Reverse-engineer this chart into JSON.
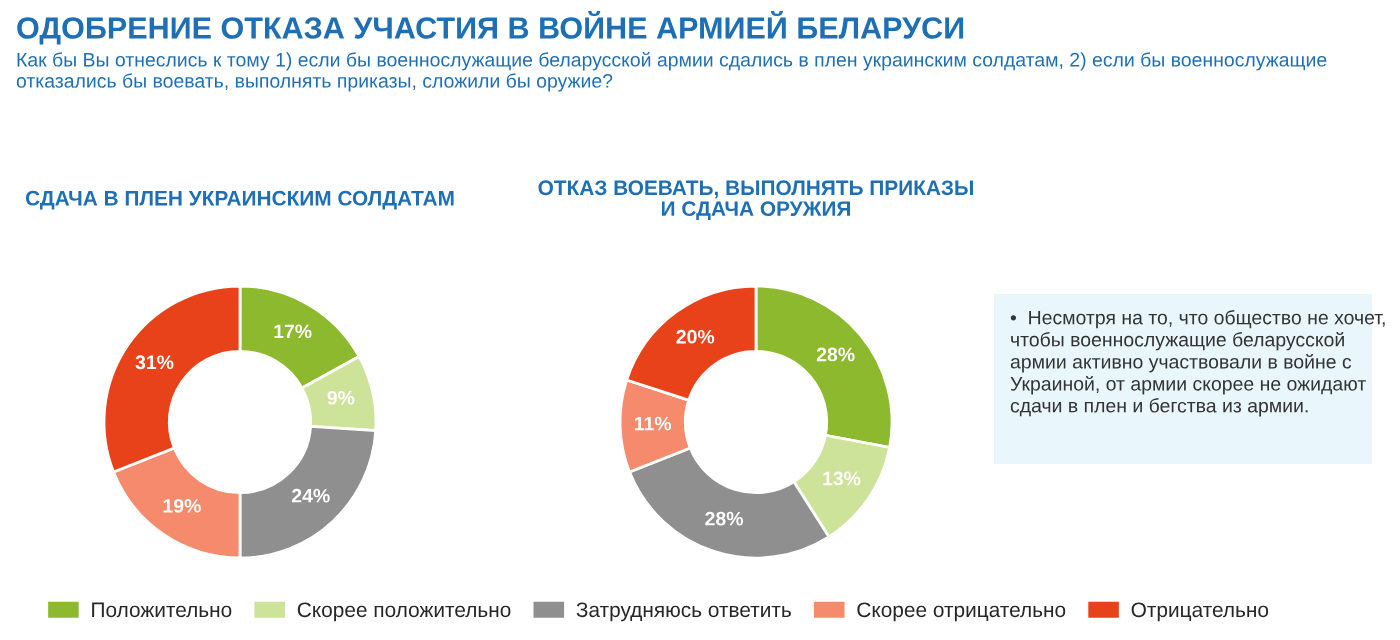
{
  "chart_data": [
    {
      "type": "donut",
      "title": "ОДОБРЕНИЕ ОТКАЗА УЧАСТИЯ В ВОЙНЕ АРМИЕЙ БЕЛАРУСИ",
      "subtitle": "Как бы Вы отнеслись к тому 1) если бы военнослужащие беларусской армии сдались в плен украинским солдатам, 2) если бы военнослужащие отказались бы воевать, выполнять приказы, сложили бы оружие?",
      "xlabel": "СДАЧА В ПЛЕН УКРАИНСКИМ СОЛДАТАМ",
      "categories": [
        "Положительно",
        "Скорее положительно",
        "Затрудняюсь ответить",
        "Скорее отрицательно",
        "Отрицательно"
      ],
      "values": [
        17,
        9,
        24,
        19,
        31
      ],
      "value_labels": [
        "17%",
        "9%",
        "24%",
        "19%",
        "31%"
      ],
      "colors": [
        "#8db92e",
        "#cde39a",
        "#8f8f8f",
        "#f58b6c",
        "#e8421b"
      ],
      "legend": "bottom"
    },
    {
      "type": "donut",
      "xlabel": "ОТКАЗ ВОЕВАТЬ, ВЫПОЛНЯТЬ ПРИКАЗЫ\nИ СДАЧА ОРУЖИЯ",
      "categories": [
        null,
        null,
        null,
        null,
        null
      ],
      "values": [
        28,
        13,
        28,
        11,
        20
      ],
      "value_labels": [
        "28%",
        "13%",
        "28%",
        "11%",
        "20%"
      ],
      "colors": [
        "#8db92e",
        "#cde39a",
        "#8f8f8f",
        "#f58b6c",
        "#e8421b"
      ]
    },
    {
      "type": "other",
      "annotations": [
        "•  Несмотря на то, что общество не хочет, чтобы военнослужащие беларусской армии активно участвовали в войне с Украиной, от армии скорее не ожидают сдачи в плен и бегства из армии."
      ]
    }
  ]
}
